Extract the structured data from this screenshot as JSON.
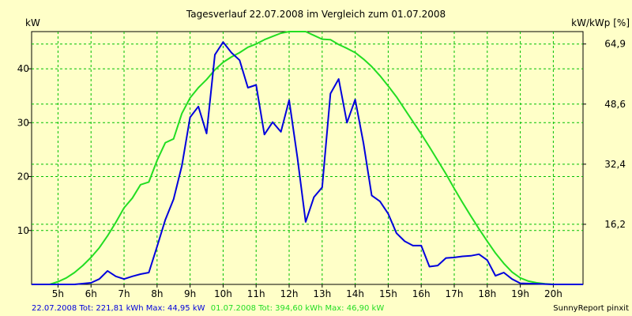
{
  "chart_data": {
    "type": "line",
    "title": "Tagesverlauf 22.07.2008 im Vergleich zum 01.07.2008",
    "ylabel_left": "kW",
    "ylabel_right": "kW/kWp [%]",
    "x_tick_labels": [
      "5h",
      "6h",
      "7h",
      "8h",
      "9h",
      "10h",
      "11h",
      "12h",
      "13h",
      "14h",
      "15h",
      "16h",
      "17h",
      "18h",
      "19h",
      "20h"
    ],
    "x_ticks": [
      5,
      6,
      7,
      8,
      9,
      10,
      11,
      12,
      13,
      14,
      15,
      16,
      17,
      18,
      19,
      20
    ],
    "xlim": [
      4.2,
      20.9
    ],
    "ylim": [
      0,
      46.9
    ],
    "y_ticks_left": [
      10,
      20,
      30,
      40
    ],
    "y_tick_labels_left": [
      "10",
      "20",
      "30",
      "40"
    ],
    "y_ticks_right_at_kw": [
      11.15,
      22.3,
      33.45,
      44.6
    ],
    "y_tick_labels_right": [
      "16,2",
      "32,4",
      "48,6",
      "64,9"
    ],
    "grid": true,
    "series": [
      {
        "name": "22.07.2008",
        "color": "#0000dd",
        "x": [
          4.2,
          5.0,
          5.5,
          6.0,
          6.25,
          6.5,
          6.75,
          7.0,
          7.25,
          7.5,
          7.75,
          8.0,
          8.25,
          8.5,
          8.75,
          9.0,
          9.25,
          9.5,
          9.75,
          10.0,
          10.25,
          10.5,
          10.75,
          11.0,
          11.25,
          11.5,
          11.75,
          12.0,
          12.25,
          12.5,
          12.75,
          13.0,
          13.25,
          13.5,
          13.75,
          14.0,
          14.25,
          14.5,
          14.75,
          15.0,
          15.25,
          15.5,
          15.75,
          16.0,
          16.25,
          16.5,
          16.75,
          17.0,
          17.25,
          17.5,
          17.75,
          18.0,
          18.25,
          18.5,
          18.75,
          19.0,
          19.5,
          20.0,
          20.9
        ],
        "y": [
          0,
          0,
          0,
          0.3,
          1.0,
          2.5,
          1.5,
          1.0,
          1.5,
          1.9,
          2.2,
          7.0,
          12.0,
          15.8,
          22.0,
          31.0,
          33.0,
          28.0,
          42.6,
          44.95,
          43.0,
          41.6,
          36.5,
          37.0,
          27.8,
          30.1,
          28.3,
          34.2,
          23.5,
          11.6,
          16.2,
          18.0,
          35.4,
          38.1,
          30.0,
          34.3,
          26.2,
          16.5,
          15.4,
          13.1,
          9.5,
          8.0,
          7.2,
          7.2,
          3.3,
          3.5,
          4.9,
          5.0,
          5.2,
          5.3,
          5.6,
          4.5,
          1.6,
          2.2,
          1.0,
          0.2,
          0.1,
          0,
          0
        ]
      },
      {
        "name": "01.07.2008",
        "color": "#22dd22",
        "x": [
          4.2,
          4.75,
          5.0,
          5.25,
          5.5,
          5.75,
          6.0,
          6.25,
          6.5,
          6.75,
          7.0,
          7.25,
          7.5,
          7.75,
          8.0,
          8.25,
          8.5,
          8.75,
          9.0,
          9.25,
          9.5,
          9.75,
          10.0,
          10.25,
          10.5,
          10.75,
          11.0,
          11.25,
          11.5,
          11.75,
          12.0,
          12.25,
          12.5,
          12.75,
          13.0,
          13.25,
          13.5,
          13.75,
          14.0,
          14.25,
          14.5,
          14.75,
          15.0,
          15.25,
          15.5,
          15.75,
          16.0,
          16.25,
          16.5,
          16.75,
          17.0,
          17.25,
          17.5,
          17.75,
          18.0,
          18.25,
          18.5,
          18.75,
          19.0,
          19.25,
          19.5,
          19.75,
          20.0,
          20.5,
          20.9
        ],
        "y": [
          0,
          0,
          0.5,
          1.2,
          2.2,
          3.5,
          5.0,
          6.8,
          9.0,
          11.5,
          14.2,
          16.0,
          18.5,
          19.0,
          23.0,
          26.3,
          27.0,
          31.7,
          34.6,
          36.5,
          38.0,
          39.8,
          41.2,
          42.2,
          43.0,
          44.0,
          44.6,
          45.4,
          46.0,
          46.6,
          46.9,
          46.9,
          46.9,
          46.2,
          45.5,
          45.4,
          44.5,
          43.8,
          43.0,
          41.8,
          40.4,
          38.7,
          36.8,
          34.8,
          32.5,
          30.2,
          27.9,
          25.5,
          23.0,
          20.5,
          17.8,
          15.2,
          12.7,
          10.3,
          8.0,
          5.8,
          3.9,
          2.3,
          1.2,
          0.6,
          0.3,
          0.1,
          0,
          0,
          0
        ]
      }
    ],
    "footer": {
      "series1_text": "22.07.2008 Tot: 221,81 kWh Max: 44,95 kW",
      "series1_color": "#0000dd",
      "series2_text": "01.07.2008 Tot: 394,60 kWh Max: 46,90 kW",
      "series2_color": "#22dd22",
      "credit": "SunnyReport pinxit"
    }
  }
}
